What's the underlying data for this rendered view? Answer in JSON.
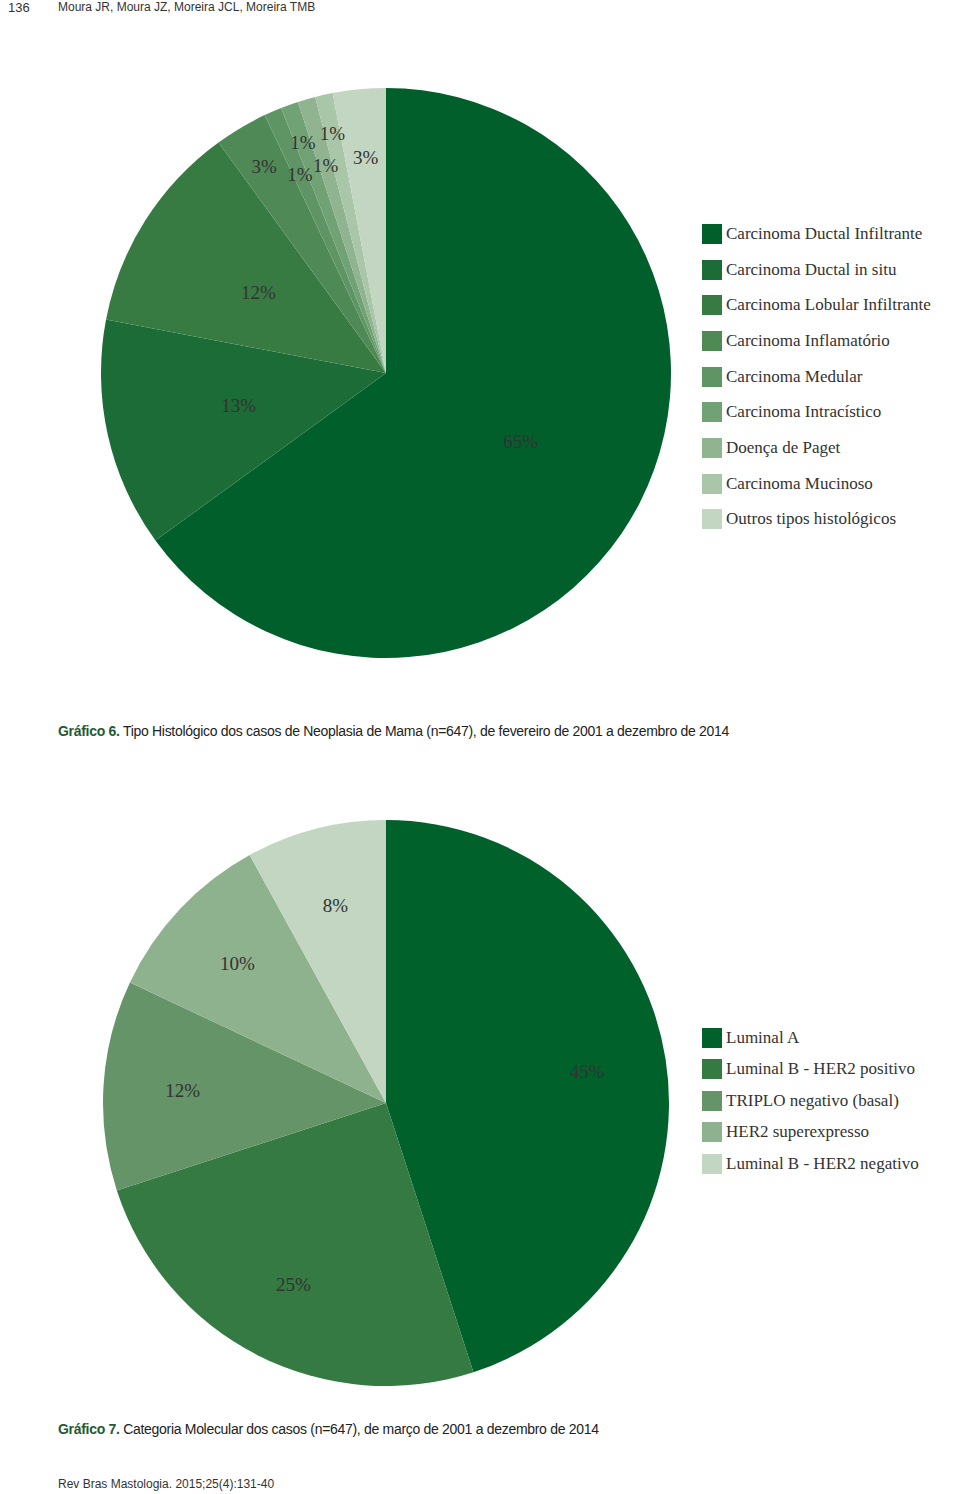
{
  "header": {
    "page": "136",
    "authors": "Moura JR, Moura JZ, Moreira JCL, Moreira TMB"
  },
  "footer": "Rev Bras Mastologia. 2015;25(4):131-40",
  "chart_data": [
    {
      "type": "pie",
      "title": "Gráfico 6. Tipo Histológico dos casos de Neoplasia de Mama (n=647), de fevereiro de 2001 a dezembro de 2014",
      "categories": [
        "Carcinoma Ductal Infiltrante",
        "Carcinoma Ductal in situ",
        "Carcinoma Lobular Infiltrante",
        "Carcinoma Inflamatório",
        "Carcinoma Medular",
        "Carcinoma Intracístico",
        "Doença de Paget",
        "Carcinoma Mucinoso",
        "Outros tipos histológicos"
      ],
      "values": [
        65,
        13,
        12,
        3,
        1,
        1,
        1,
        1,
        3
      ],
      "value_labels": [
        "65%",
        "13%",
        "12%",
        "3%",
        "1%",
        "1%",
        "1%",
        "1%",
        "3%"
      ],
      "colors": [
        "#005f2b",
        "#1b6c36",
        "#377b43",
        "#4f8a56",
        "#5f9565",
        "#71a275",
        "#8fb48f",
        "#a9c6a8",
        "#c2d6c1"
      ],
      "data_labels": true,
      "legend": "right"
    },
    {
      "type": "pie",
      "title": "Gráfico 7. Categoria Molecular dos casos (n=647), de março de 2001 a dezembro de 2014",
      "categories": [
        "Luminal A",
        "Luminal B - HER2 positivo",
        "TRIPLO negativo (basal)",
        "HER2 superexpresso",
        "Luminal B - HER2 negativo"
      ],
      "values": [
        45,
        25,
        12,
        10,
        8
      ],
      "value_labels": [
        "45%",
        "25%",
        "12%",
        "10%",
        "8%"
      ],
      "colors": [
        "#00612b",
        "#347a42",
        "#649467",
        "#8fb28e",
        "#c2d6c1"
      ],
      "data_labels": true,
      "legend": "right"
    }
  ]
}
